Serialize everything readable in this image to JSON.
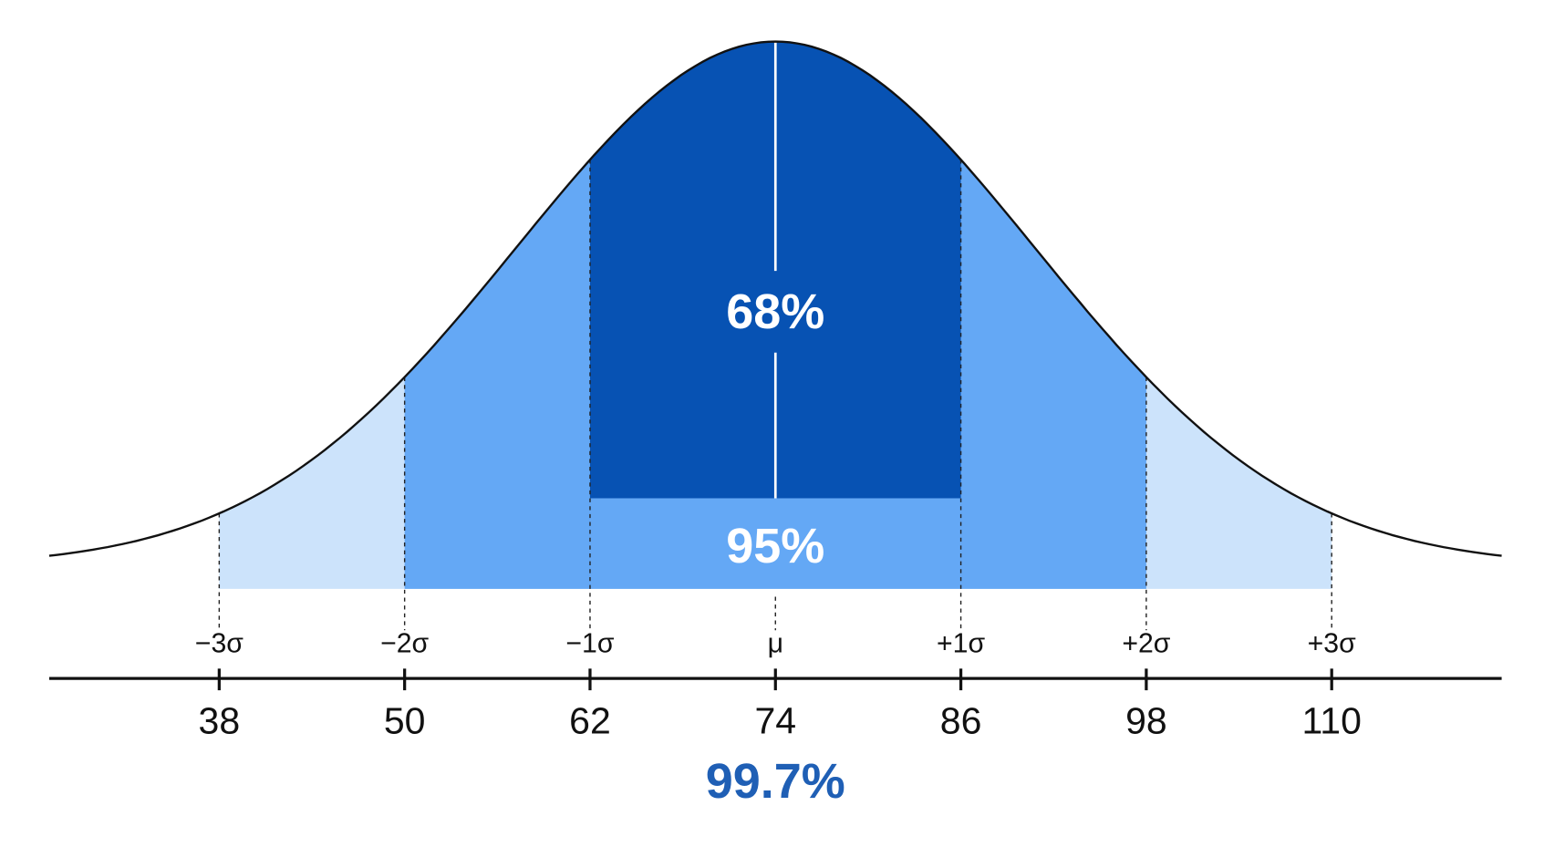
{
  "chart_data": {
    "type": "normal-distribution",
    "xlim": [
      27,
      121
    ],
    "xticks": [
      38,
      50,
      62,
      74,
      86,
      98,
      110
    ],
    "sigma_labels": [
      "−3σ",
      "−2σ",
      "−1σ",
      "μ",
      "+1σ",
      "+2σ",
      "+3σ"
    ],
    "bands": {
      "values": [
        68,
        95,
        99.7
      ],
      "value_labels": [
        "68%",
        "95%",
        "99.7%"
      ],
      "colors": [
        "#0752b3",
        "#64a8f5",
        "#cce3fb"
      ]
    }
  }
}
